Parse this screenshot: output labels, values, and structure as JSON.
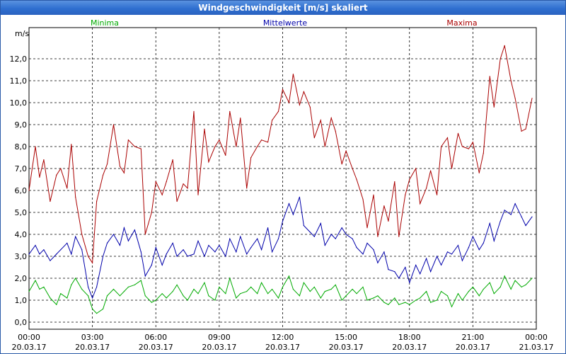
{
  "window": {
    "title": "Windgeschwindigkeit [m/s] skaliert"
  },
  "chart_data": {
    "type": "line",
    "title": "Windgeschwindigkeit [m/s] skaliert",
    "ylabel": "m/s",
    "xlabel": "",
    "ylim": [
      0,
      13
    ],
    "xlim": [
      0,
      24
    ],
    "y_ticks": [
      "0,0",
      "1,0",
      "2,0",
      "3,0",
      "4,0",
      "5,0",
      "6,0",
      "7,0",
      "8,0",
      "9,0",
      "10,0",
      "11,0",
      "12,0"
    ],
    "x_ticks": [
      {
        "time": "00:00",
        "date": "20.03.17"
      },
      {
        "time": "03:00",
        "date": "20.03.17"
      },
      {
        "time": "06:00",
        "date": "20.03.17"
      },
      {
        "time": "09:00",
        "date": "20.03.17"
      },
      {
        "time": "12:00",
        "date": "20.03.17"
      },
      {
        "time": "15:00",
        "date": "20.03.17"
      },
      {
        "time": "18:00",
        "date": "20.03.17"
      },
      {
        "time": "21:00",
        "date": "20.03.17"
      },
      {
        "time": "00:00",
        "date": "21.03.17"
      }
    ],
    "grid": true,
    "legend_placement": "top",
    "series": [
      {
        "name": "Minima",
        "color": "#00aa00",
        "x": [
          0,
          0.3,
          0.5,
          0.7,
          1,
          1.3,
          1.5,
          1.8,
          2,
          2.2,
          2.5,
          2.8,
          3,
          3.2,
          3.5,
          3.7,
          4,
          4.3,
          4.5,
          4.7,
          5,
          5.3,
          5.5,
          5.8,
          6,
          6.3,
          6.5,
          6.8,
          7,
          7.3,
          7.5,
          7.8,
          8,
          8.3,
          8.5,
          8.8,
          9,
          9.3,
          9.5,
          9.8,
          10,
          10.3,
          10.5,
          10.8,
          11,
          11.3,
          11.5,
          11.8,
          12,
          12.3,
          12.5,
          12.8,
          13,
          13.3,
          13.5,
          13.8,
          14,
          14.3,
          14.5,
          14.8,
          15,
          15.3,
          15.5,
          15.8,
          16,
          16.3,
          16.5,
          16.8,
          17,
          17.3,
          17.5,
          17.8,
          18,
          18.3,
          18.5,
          18.8,
          19,
          19.3,
          19.5,
          19.8,
          20,
          20.3,
          20.5,
          20.8,
          21,
          21.3,
          21.5,
          21.8,
          22,
          22.3,
          22.5,
          22.8,
          23,
          23.3,
          23.5,
          23.8
        ],
        "values": [
          1.4,
          1.9,
          1.5,
          1.6,
          1.1,
          0.8,
          1.3,
          1.1,
          1.7,
          2.0,
          1.5,
          1.2,
          0.6,
          0.4,
          0.6,
          1.2,
          1.5,
          1.2,
          1.4,
          1.6,
          1.7,
          1.9,
          1.2,
          0.9,
          1.0,
          1.3,
          1.1,
          1.4,
          1.7,
          1.2,
          1.0,
          1.5,
          1.3,
          1.8,
          1.2,
          1.0,
          1.6,
          1.3,
          2.0,
          1.1,
          1.3,
          1.4,
          1.6,
          1.3,
          1.8,
          1.3,
          1.5,
          1.1,
          1.6,
          2.1,
          1.5,
          1.2,
          1.8,
          1.4,
          1.6,
          1.1,
          1.4,
          1.5,
          1.7,
          1.0,
          1.2,
          1.5,
          1.3,
          1.6,
          1.0,
          1.1,
          1.2,
          0.9,
          0.8,
          1.1,
          0.8,
          0.9,
          0.8,
          1.0,
          1.1,
          1.4,
          0.9,
          1.0,
          1.4,
          1.2,
          0.7,
          1.3,
          1.0,
          1.4,
          1.6,
          1.2,
          1.5,
          1.8,
          1.3,
          1.6,
          2.1,
          1.5,
          1.9,
          1.6,
          1.7,
          2.0
        ]
      },
      {
        "name": "Mittelwerte",
        "color": "#0000aa",
        "x": [
          0,
          0.3,
          0.5,
          0.7,
          1,
          1.3,
          1.5,
          1.8,
          2,
          2.2,
          2.5,
          2.8,
          3,
          3.2,
          3.5,
          3.7,
          4,
          4.3,
          4.5,
          4.7,
          5,
          5.3,
          5.5,
          5.8,
          6,
          6.3,
          6.5,
          6.8,
          7,
          7.3,
          7.5,
          7.8,
          8,
          8.3,
          8.5,
          8.8,
          9,
          9.3,
          9.5,
          9.8,
          10,
          10.3,
          10.5,
          10.8,
          11,
          11.3,
          11.5,
          11.8,
          12,
          12.3,
          12.5,
          12.8,
          13,
          13.3,
          13.5,
          13.8,
          14,
          14.3,
          14.5,
          14.8,
          15,
          15.3,
          15.5,
          15.8,
          16,
          16.3,
          16.5,
          16.8,
          17,
          17.3,
          17.5,
          17.8,
          18,
          18.3,
          18.5,
          18.8,
          19,
          19.3,
          19.5,
          19.8,
          20,
          20.3,
          20.5,
          20.8,
          21,
          21.3,
          21.5,
          21.8,
          22,
          22.3,
          22.5,
          22.8,
          23,
          23.3,
          23.5,
          23.8
        ],
        "values": [
          3.1,
          3.5,
          3.1,
          3.3,
          2.8,
          3.1,
          3.3,
          3.6,
          3.1,
          3.9,
          3.3,
          1.6,
          1.1,
          1.6,
          3.0,
          3.6,
          4.0,
          3.5,
          4.3,
          3.7,
          4.2,
          3.2,
          2.1,
          2.6,
          3.4,
          2.6,
          3.1,
          3.6,
          3.0,
          3.3,
          3.0,
          3.1,
          3.7,
          3.0,
          3.5,
          3.2,
          3.5,
          3.0,
          3.8,
          3.2,
          3.9,
          3.1,
          3.4,
          3.8,
          3.3,
          4.3,
          3.2,
          3.8,
          4.6,
          5.4,
          4.9,
          5.7,
          4.4,
          4.1,
          3.9,
          4.5,
          3.5,
          4.0,
          3.8,
          4.3,
          4.0,
          3.8,
          3.4,
          3.1,
          3.6,
          3.3,
          2.7,
          3.2,
          2.4,
          2.3,
          2.0,
          2.5,
          1.8,
          2.6,
          2.2,
          2.9,
          2.3,
          3.0,
          2.6,
          3.2,
          3.1,
          3.5,
          2.8,
          3.4,
          3.9,
          3.3,
          3.6,
          4.5,
          3.7,
          4.6,
          5.1,
          4.9,
          5.4,
          4.8,
          4.4,
          4.8
        ]
      },
      {
        "name": "Maxima",
        "color": "#aa0000",
        "x": [
          0,
          0.3,
          0.5,
          0.7,
          1,
          1.3,
          1.5,
          1.8,
          2,
          2.2,
          2.5,
          2.8,
          3,
          3.2,
          3.5,
          3.7,
          4,
          4.3,
          4.5,
          4.7,
          5,
          5.3,
          5.5,
          5.8,
          6,
          6.3,
          6.5,
          6.8,
          7,
          7.3,
          7.5,
          7.8,
          8,
          8.3,
          8.5,
          8.8,
          9,
          9.3,
          9.5,
          9.8,
          10,
          10.3,
          10.5,
          10.8,
          11,
          11.3,
          11.5,
          11.8,
          12,
          12.3,
          12.5,
          12.8,
          13,
          13.3,
          13.5,
          13.8,
          14,
          14.3,
          14.5,
          14.8,
          15,
          15.3,
          15.5,
          15.8,
          16,
          16.3,
          16.5,
          16.8,
          17,
          17.3,
          17.5,
          17.8,
          18,
          18.3,
          18.5,
          18.8,
          19,
          19.3,
          19.5,
          19.8,
          20,
          20.3,
          20.5,
          20.8,
          21,
          21.3,
          21.5,
          21.8,
          22,
          22.3,
          22.5,
          22.8,
          23,
          23.3,
          23.5,
          23.8
        ],
        "values": [
          6.0,
          8.0,
          6.6,
          7.4,
          5.5,
          6.7,
          7.0,
          6.1,
          8.1,
          5.7,
          4.0,
          3.0,
          2.7,
          5.5,
          6.7,
          7.2,
          9.0,
          7.1,
          6.8,
          8.3,
          8.0,
          7.9,
          4.0,
          5.0,
          6.4,
          5.8,
          6.4,
          7.4,
          5.5,
          6.3,
          6.1,
          9.6,
          5.8,
          8.8,
          7.3,
          8.0,
          8.3,
          7.6,
          9.6,
          8.0,
          9.3,
          6.1,
          7.5,
          8.0,
          8.3,
          8.2,
          9.2,
          9.6,
          10.6,
          10.0,
          11.3,
          9.9,
          10.5,
          9.8,
          8.4,
          9.2,
          8.0,
          9.3,
          8.7,
          7.2,
          7.8,
          7.0,
          6.5,
          5.6,
          4.3,
          5.8,
          3.9,
          5.3,
          4.6,
          6.4,
          3.9,
          5.8,
          6.5,
          7.0,
          5.4,
          6.1,
          6.9,
          5.8,
          8.0,
          8.4,
          7.0,
          8.6,
          8.0,
          7.9,
          8.2,
          6.8,
          7.7,
          11.2,
          9.8,
          12.0,
          12.6,
          11.0,
          10.2,
          8.7,
          8.8,
          10.2
        ]
      }
    ]
  }
}
